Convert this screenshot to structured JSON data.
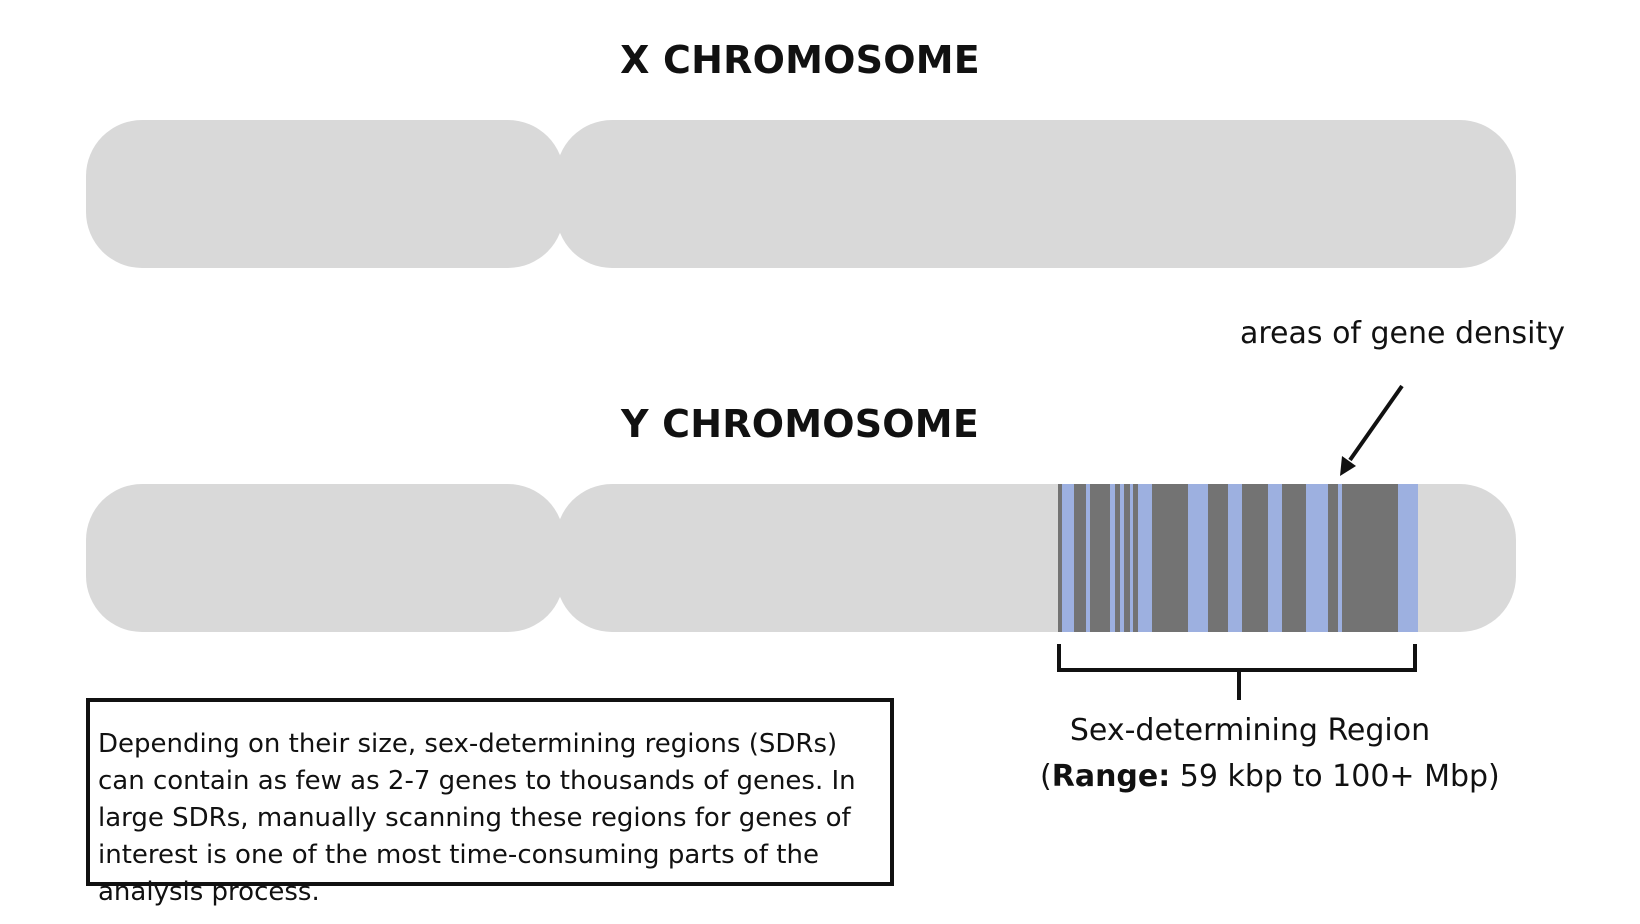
{
  "x_chromosome": {
    "title": "X CHROMOSOME"
  },
  "y_chromosome": {
    "title": "Y CHROMOSOME"
  },
  "gene_density_label": "areas of gene density",
  "sdr": {
    "name": "Sex-determining Region",
    "range_prefix": "(",
    "range_label": "Range:",
    "range_value": " 59 kbp to 100+ Mbp)"
  },
  "info_text": "Depending on their size, sex-determining regions (SDRs) can contain as few as 2-7 genes to thousands of genes. In large SDRs, manually scanning these regions for genes of interest is one of the most time-consuming parts of the analysis process.",
  "colors": {
    "chromosome": "#d9d9d9",
    "sdr_band": "#737373",
    "gene_stripe": "#9db0e0",
    "ink": "#111111"
  }
}
